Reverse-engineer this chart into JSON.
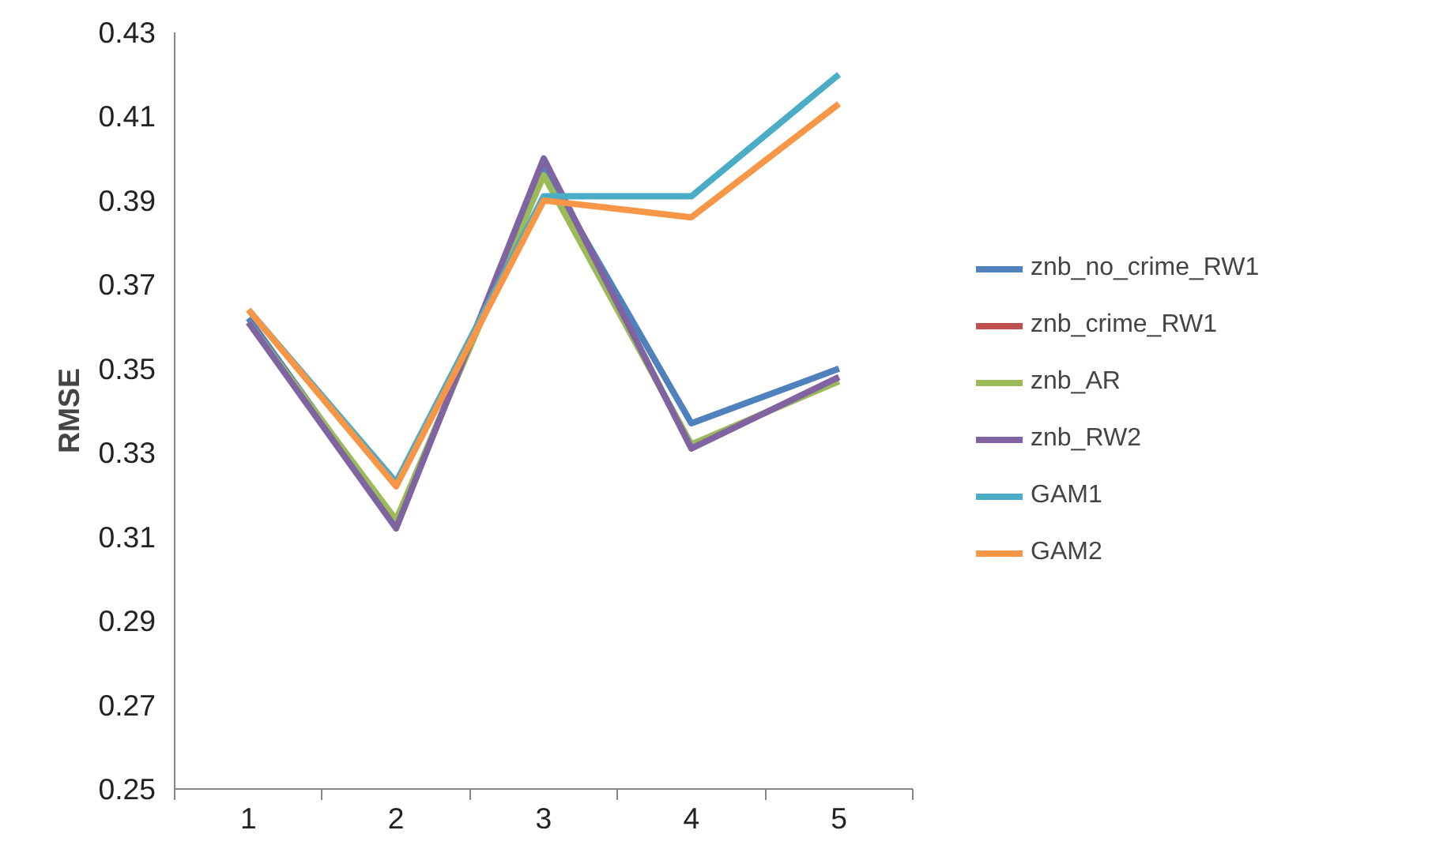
{
  "chart_data": {
    "type": "line",
    "ylabel": "RMSE",
    "categories": [
      "1",
      "2",
      "3",
      "4",
      "5"
    ],
    "ylim": [
      0.25,
      0.43
    ],
    "yticks": [
      0.25,
      0.27,
      0.29,
      0.31,
      0.33,
      0.35,
      0.37,
      0.39,
      0.41,
      0.43
    ],
    "grid": false,
    "legend": "right",
    "marker": "none",
    "line_style": "solid",
    "series": [
      {
        "name": "znb_no_crime_RW1",
        "color": "#4f81bd",
        "values": [
          0.362,
          0.313,
          0.398,
          0.337,
          0.35
        ]
      },
      {
        "name": "znb_crime_RW1",
        "color": "#c0504d",
        "values": [
          null,
          null,
          null,
          null,
          null
        ]
      },
      {
        "name": "znb_AR",
        "color": "#9bbb59",
        "values": [
          0.361,
          0.314,
          0.396,
          0.332,
          0.347
        ]
      },
      {
        "name": "znb_RW2",
        "color": "#8064a2",
        "values": [
          0.361,
          0.312,
          0.4,
          0.331,
          0.348
        ]
      },
      {
        "name": "GAM1",
        "color": "#4bacc6",
        "values": [
          0.364,
          0.323,
          0.391,
          0.391,
          0.42
        ]
      },
      {
        "name": "GAM2",
        "color": "#f79646",
        "values": [
          0.364,
          0.322,
          0.39,
          0.386,
          0.413
        ]
      }
    ]
  }
}
